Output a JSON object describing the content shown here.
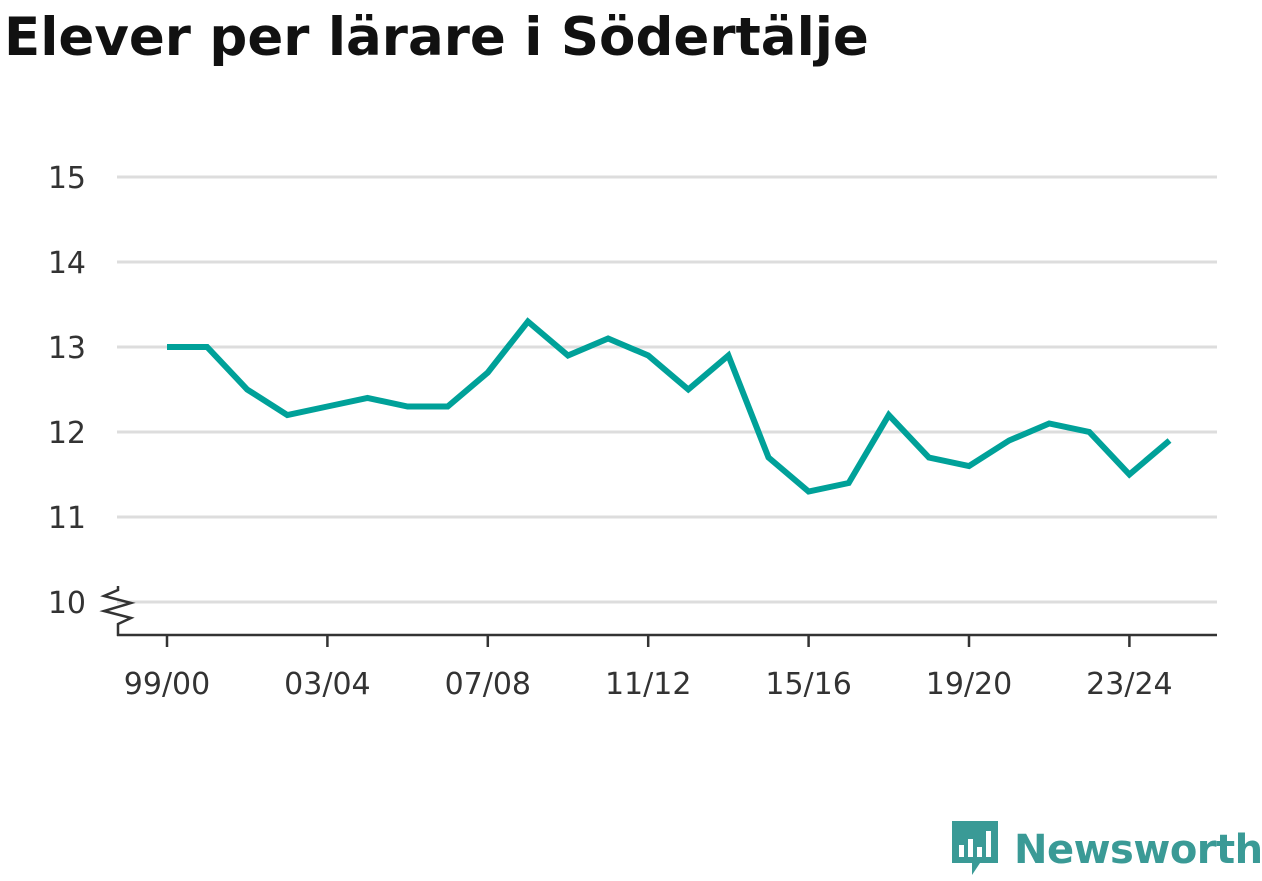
{
  "title": "Elever per lärare i Södertälje",
  "brand": {
    "name": "Newsworthy",
    "color": "#3a9a96",
    "icon": "newsworthy-logo-icon"
  },
  "colors": {
    "line": "#00a199",
    "grid": "#dddddd",
    "axis": "#333333"
  },
  "chart_data": {
    "type": "line",
    "title": "Elever per lärare i Södertälje",
    "xlabel": "",
    "ylabel": "",
    "ylim": [
      10,
      15
    ],
    "y_axis_break": true,
    "grid": "horizontal",
    "yticks": [
      10,
      11,
      12,
      13,
      14,
      15
    ],
    "xtick_labels": [
      "99/00",
      "03/04",
      "07/08",
      "11/12",
      "15/16",
      "19/20",
      "23/24"
    ],
    "x": [
      "99/00",
      "00/01",
      "01/02",
      "02/03",
      "03/04",
      "04/05",
      "05/06",
      "06/07",
      "07/08",
      "08/09",
      "09/10",
      "10/11",
      "11/12",
      "12/13",
      "13/14",
      "14/15",
      "15/16",
      "16/17",
      "17/18",
      "18/19",
      "19/20",
      "20/21",
      "21/22",
      "22/23",
      "23/24",
      "24/25"
    ],
    "series": [
      {
        "values": [
          13.0,
          13.0,
          12.5,
          12.2,
          12.3,
          12.4,
          12.3,
          12.3,
          12.7,
          13.3,
          12.9,
          13.1,
          12.9,
          12.5,
          12.9,
          11.7,
          11.3,
          11.4,
          12.2,
          11.7,
          11.6,
          11.9,
          12.1,
          12.0,
          11.5,
          11.9
        ]
      }
    ]
  }
}
